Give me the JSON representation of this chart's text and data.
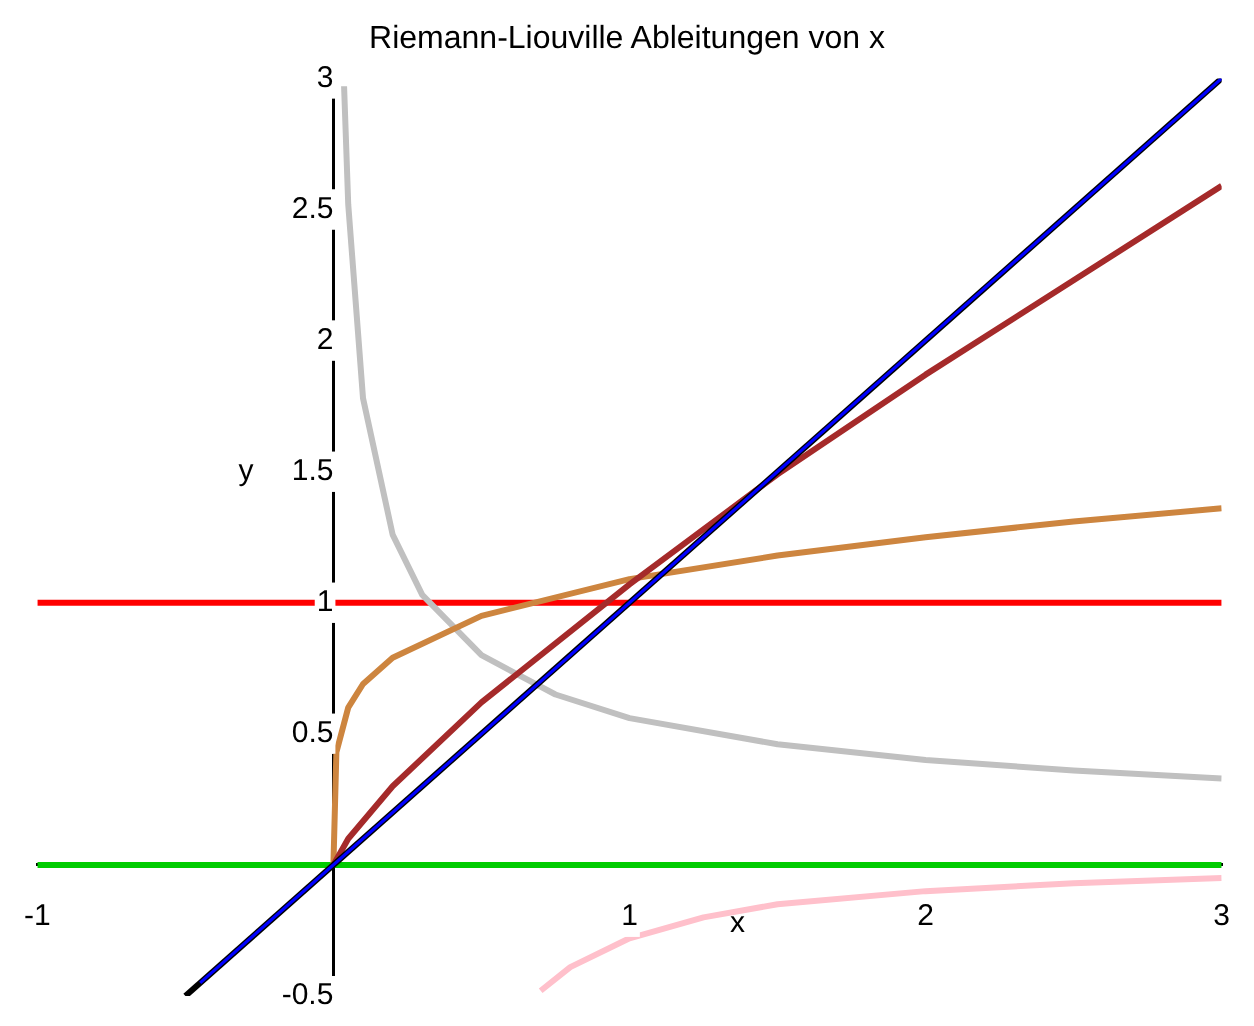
{
  "chart_data": {
    "type": "line",
    "title": "Riemann-Liouville Ableitungen von x",
    "xlabel": "x",
    "ylabel": "y",
    "xlim": [
      -1,
      3
    ],
    "ylim": [
      -0.5,
      3
    ],
    "xticks": [
      -1,
      1,
      2,
      3
    ],
    "yticks": [
      -0.5,
      0.5,
      1,
      1.5,
      2,
      2.5,
      3
    ],
    "grid": false,
    "legend": false,
    "marker": "none",
    "series": [
      {
        "color": "#ff0000",
        "x": [
          -1,
          3
        ],
        "values": [
          1,
          1
        ]
      },
      {
        "color": "#00cc00",
        "x": [
          -1,
          3
        ],
        "values": [
          0,
          0
        ]
      },
      {
        "color": "#c0c0c0",
        "x": [
          0.036,
          0.05,
          0.1,
          0.2,
          0.3,
          0.5,
          0.75,
          1,
          1.5,
          2,
          2.5,
          3
        ],
        "values": [
          2.97,
          2.52,
          1.78,
          1.26,
          1.03,
          0.8,
          0.65,
          0.56,
          0.46,
          0.4,
          0.36,
          0.33
        ]
      },
      {
        "color": "#ffc0cb",
        "x": [
          0.7,
          0.8,
          1,
          1.25,
          1.5,
          2,
          2.5,
          3
        ],
        "values": [
          -0.48,
          -0.39,
          -0.28,
          -0.2,
          -0.15,
          -0.1,
          -0.07,
          -0.05
        ]
      },
      {
        "color": "#cd853f",
        "x": [
          0,
          0.01,
          0.05,
          0.1,
          0.2,
          0.5,
          1,
          1.5,
          2,
          2.5,
          3
        ],
        "values": [
          0,
          0.43,
          0.6,
          0.69,
          0.79,
          0.95,
          1.09,
          1.18,
          1.25,
          1.31,
          1.36
        ]
      },
      {
        "color": "#a52a2a",
        "x": [
          0,
          0.05,
          0.2,
          0.5,
          1,
          1.5,
          2,
          2.5,
          3
        ],
        "values": [
          0,
          0.1,
          0.3,
          0.62,
          1.07,
          1.49,
          1.87,
          2.23,
          2.59
        ]
      },
      {
        "color": "#000000",
        "x": [
          -0.5,
          3
        ],
        "values": [
          -0.5,
          3
        ]
      },
      {
        "color": "#0000ff",
        "x": [
          -0.45,
          3
        ],
        "values": [
          -0.45,
          3
        ]
      }
    ]
  }
}
